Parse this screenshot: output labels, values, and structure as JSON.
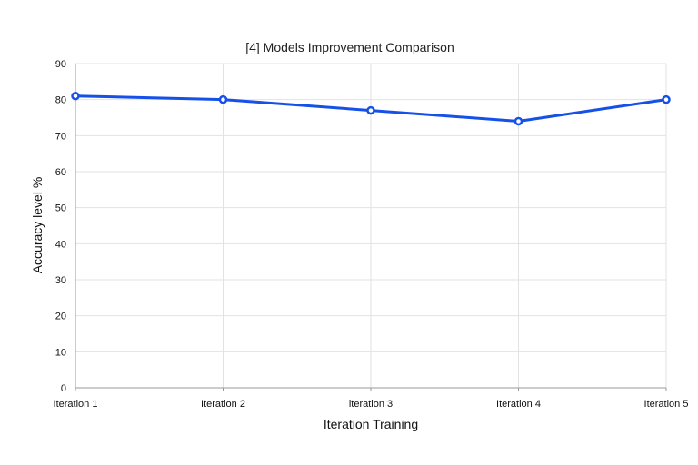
{
  "chart_data": {
    "type": "line",
    "title": "[4] Models Improvement Comparison",
    "xlabel": "Iteration Training",
    "ylabel": "Accuracy level %",
    "categories": [
      "Iteration 1",
      "Iteration 2",
      "iteration 3",
      "Iteration 4",
      "Iteration 5"
    ],
    "series": [
      {
        "values": [
          81,
          80,
          77,
          74,
          80
        ],
        "color": "#1550e8"
      }
    ],
    "ylim": [
      0,
      90
    ],
    "yticks": [
      0,
      10,
      20,
      30,
      40,
      50,
      60,
      70,
      80,
      90
    ],
    "grid": true,
    "legend": "none"
  }
}
